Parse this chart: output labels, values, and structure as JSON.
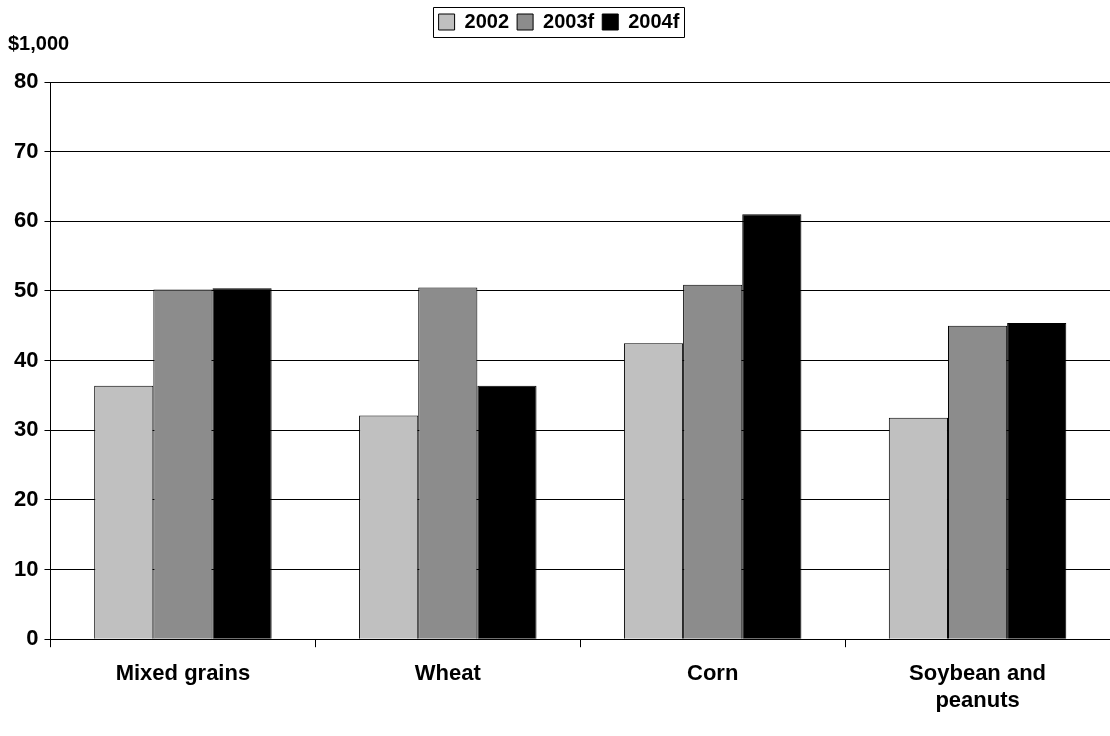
{
  "chart_data": {
    "type": "bar",
    "ylabel": "$1,000",
    "categories": [
      "Mixed grains",
      "Wheat",
      "Corn",
      "Soybean and peanuts"
    ],
    "series": [
      {
        "name": "2002",
        "color": "#c0c0c0",
        "values": [
          36.4,
          32.1,
          42.5,
          31.8
        ]
      },
      {
        "name": "2003f",
        "color": "#8c8c8c",
        "values": [
          50.2,
          50.5,
          50.9,
          45.0
        ]
      },
      {
        "name": "2004f",
        "color": "#000000",
        "values": [
          50.4,
          36.4,
          61.0,
          45.4
        ]
      }
    ],
    "ylim": [
      0,
      80
    ],
    "yticks": [
      0,
      10,
      20,
      30,
      40,
      50,
      60,
      70,
      80
    ],
    "grid": "y",
    "legend": "top"
  }
}
